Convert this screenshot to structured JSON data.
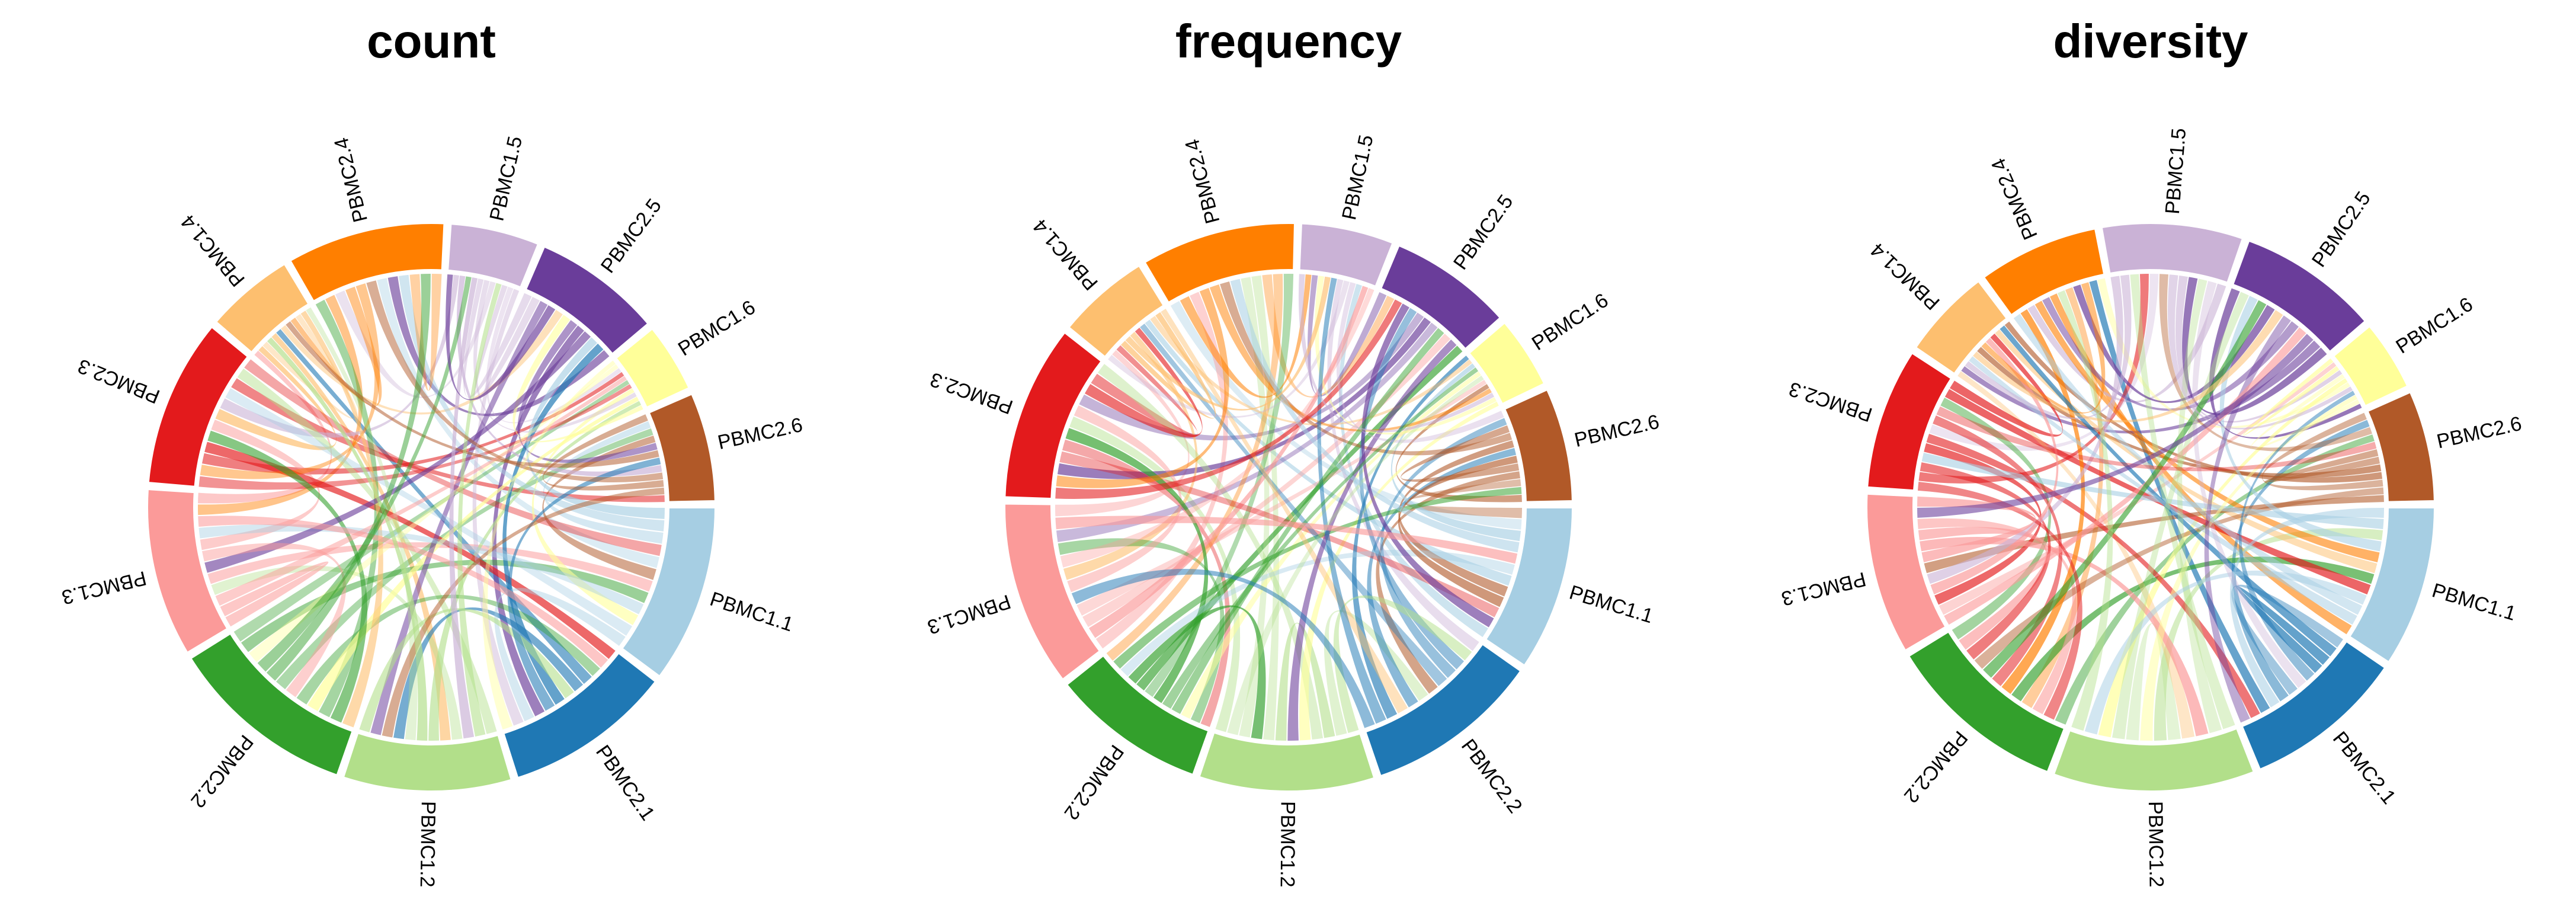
{
  "chart_data": [
    {
      "type": "chord",
      "title": "count",
      "sectors": [
        {
          "name": "PBMC1.1",
          "color": "#a6cee3",
          "size": 0.09
        },
        {
          "name": "PBMC2.1",
          "color": "#1f78b4",
          "size": 0.085
        },
        {
          "name": "PBMC1.2",
          "color": "#b2df8a",
          "size": 0.085
        },
        {
          "name": "PBMC2.2",
          "color": "#33a02c",
          "size": 0.095
        },
        {
          "name": "PBMC1.3",
          "color": "#fb9a99",
          "size": 0.085
        },
        {
          "name": "PBMC2.3",
          "color": "#e31a1c",
          "size": 0.085
        },
        {
          "name": "PBMC1.4",
          "color": "#fdbf6f",
          "size": 0.045
        },
        {
          "name": "PBMC2.4",
          "color": "#ff7f00",
          "size": 0.08
        },
        {
          "name": "PBMC1.5",
          "color": "#cab2d6",
          "size": 0.045
        },
        {
          "name": "PBMC2.5",
          "color": "#6a3d9a",
          "size": 0.065
        },
        {
          "name": "PBMC1.6",
          "color": "#ffff99",
          "size": 0.035
        },
        {
          "name": "PBMC2.6",
          "color": "#b15928",
          "size": 0.055
        }
      ]
    },
    {
      "type": "chord",
      "title": "frequency",
      "sectors": [
        {
          "name": "PBMC1.1",
          "color": "#a6cee3",
          "size": 0.08
        },
        {
          "name": "PBMC2.2",
          "color": "#1f78b4",
          "size": 0.085
        },
        {
          "name": "PBMC1.2",
          "color": "#b2df8a",
          "size": 0.085
        },
        {
          "name": "PBMC2.2",
          "color": "#33a02c",
          "size": 0.075
        },
        {
          "name": "PBMC1.3",
          "color": "#fb9a99",
          "size": 0.09
        },
        {
          "name": "PBMC2.3",
          "color": "#e31a1c",
          "size": 0.085
        },
        {
          "name": "PBMC1.4",
          "color": "#fdbf6f",
          "size": 0.045
        },
        {
          "name": "PBMC2.4",
          "color": "#ff7f00",
          "size": 0.075
        },
        {
          "name": "PBMC1.5",
          "color": "#cab2d6",
          "size": 0.045
        },
        {
          "name": "PBMC2.5",
          "color": "#6a3d9a",
          "size": 0.06
        },
        {
          "name": "PBMC1.6",
          "color": "#ffff99",
          "size": 0.035
        },
        {
          "name": "PBMC2.6",
          "color": "#b15928",
          "size": 0.055
        }
      ]
    },
    {
      "type": "chord",
      "title": "diversity",
      "sectors": [
        {
          "name": "PBMC1.1",
          "color": "#a6cee3",
          "size": 0.08
        },
        {
          "name": "PBMC2.1",
          "color": "#1f78b4",
          "size": 0.08
        },
        {
          "name": "PBMC1.2",
          "color": "#b2df8a",
          "size": 0.1
        },
        {
          "name": "PBMC2.2",
          "color": "#33a02c",
          "size": 0.09
        },
        {
          "name": "PBMC1.3",
          "color": "#fb9a99",
          "size": 0.08
        },
        {
          "name": "PBMC2.3",
          "color": "#e31a1c",
          "size": 0.07
        },
        {
          "name": "PBMC1.4",
          "color": "#fdbf6f",
          "size": 0.045
        },
        {
          "name": "PBMC2.4",
          "color": "#ff7f00",
          "size": 0.06
        },
        {
          "name": "PBMC1.5",
          "color": "#cab2d6",
          "size": 0.07
        },
        {
          "name": "PBMC2.5",
          "color": "#6a3d9a",
          "size": 0.07
        },
        {
          "name": "PBMC1.6",
          "color": "#ffff99",
          "size": 0.035
        },
        {
          "name": "PBMC2.6",
          "color": "#b15928",
          "size": 0.055
        }
      ]
    }
  ]
}
